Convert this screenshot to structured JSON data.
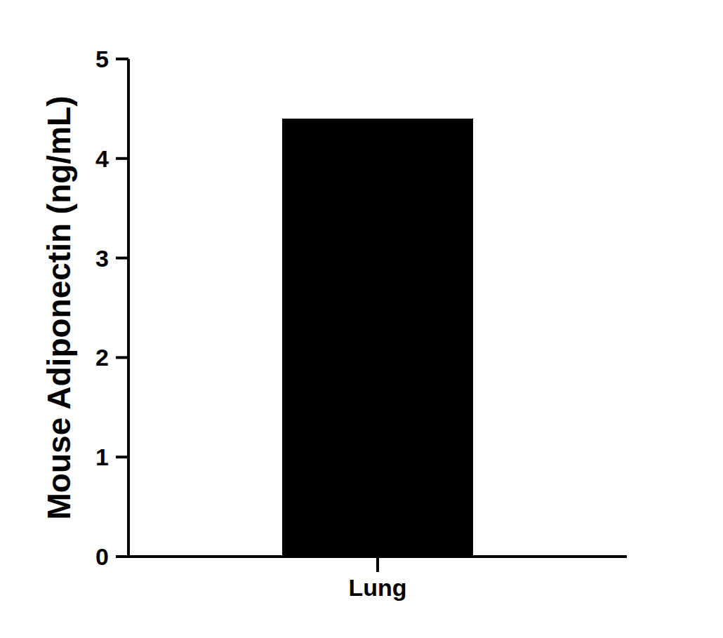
{
  "chart_data": {
    "type": "bar",
    "y_label": "Mouse Adiponectin (ng/mL)",
    "categories": [
      "Lung"
    ],
    "values": [
      4.4
    ],
    "color": "#000000",
    "ylim": [
      0,
      5
    ],
    "yticks": [
      0,
      1,
      2,
      3,
      4,
      5
    ],
    "grid": false
  }
}
